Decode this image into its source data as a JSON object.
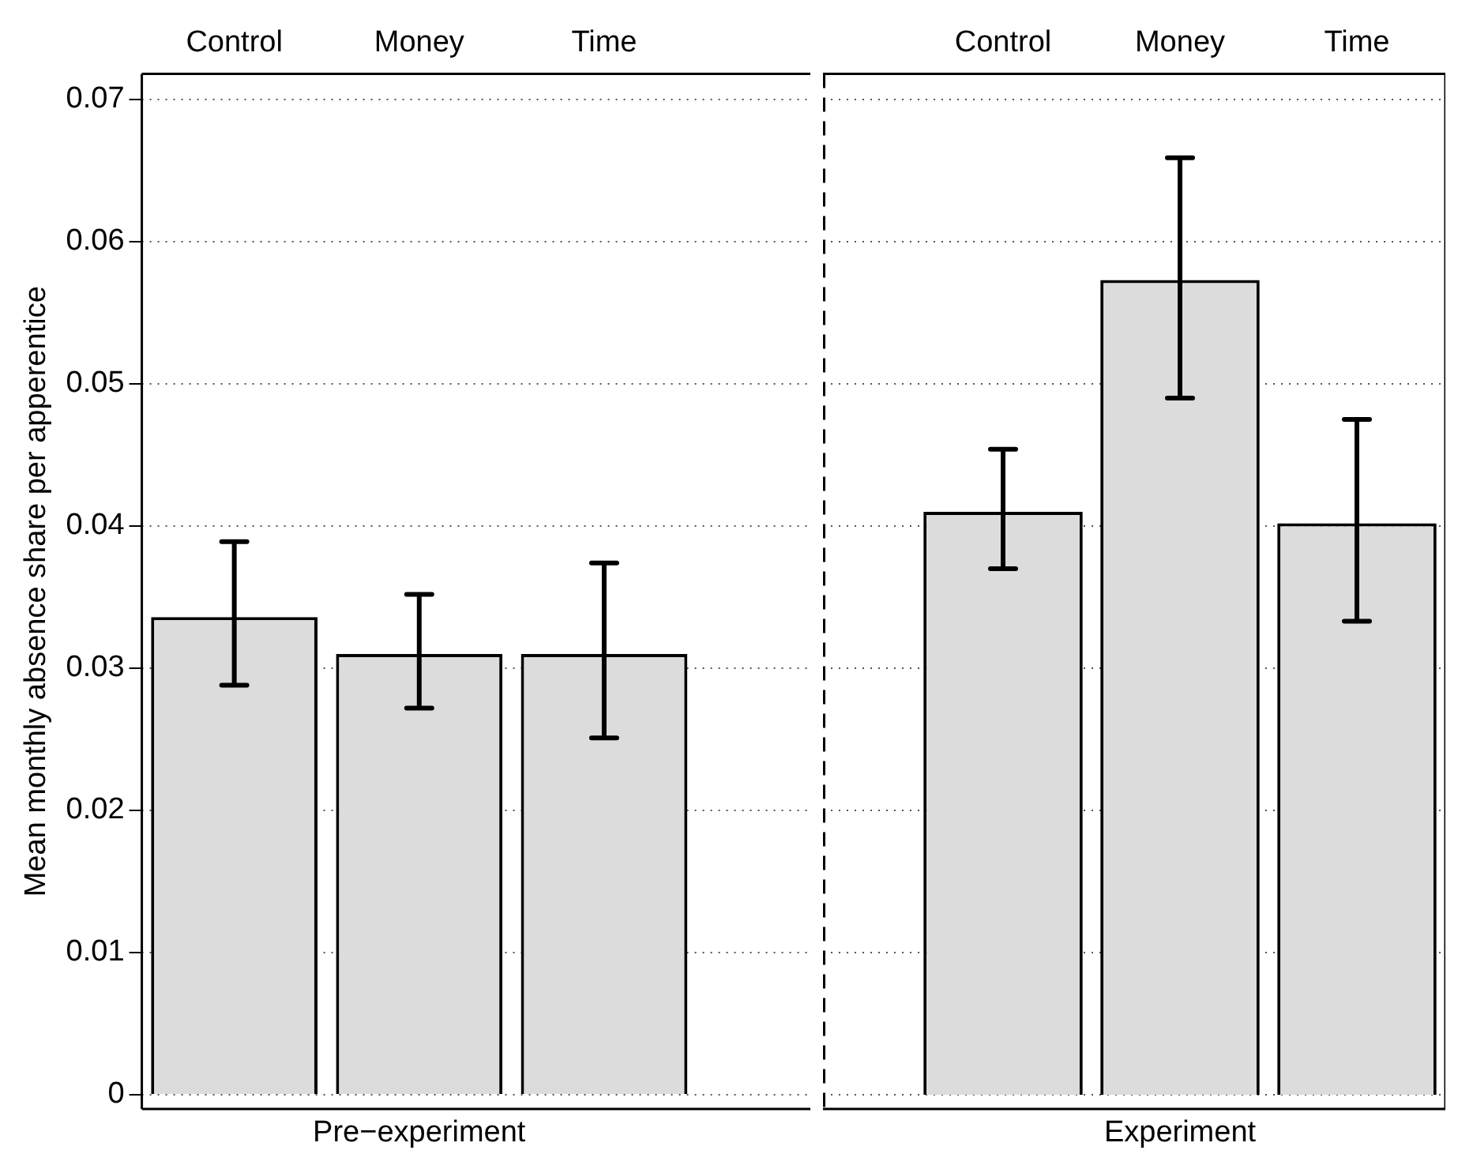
{
  "chart_data": [
    {
      "type": "bar",
      "ylabel": "Mean monthly absence share per apperentice",
      "categories": [
        "Control",
        "Money",
        "Time"
      ],
      "values": [
        0.0336,
        0.031,
        0.031
      ],
      "errors": [
        [
          0.0288,
          0.0389
        ],
        [
          0.0272,
          0.0352
        ],
        [
          0.0251,
          0.0374
        ]
      ],
      "color": "#dcdcdc",
      "ylim": [
        -0.001,
        0.0718
      ],
      "yticks": [
        0,
        0.01,
        0.02,
        0.03,
        0.04,
        0.05,
        0.06,
        0.07
      ],
      "grid": "y",
      "legend": false,
      "annotations": [
        "Pre−experiment"
      ]
    },
    {
      "type": "bar",
      "categories": [
        "Control",
        "Money",
        "Time"
      ],
      "values": [
        0.041,
        0.0573,
        0.0402
      ],
      "errors": [
        [
          0.037,
          0.0454
        ],
        [
          0.049,
          0.0659
        ],
        [
          0.0333,
          0.0475
        ]
      ],
      "color": "#dcdcdc",
      "ylim": [
        -0.001,
        0.0718
      ],
      "yticks": [
        0,
        0.01,
        0.02,
        0.03,
        0.04,
        0.05,
        0.06,
        0.07
      ],
      "grid": "y",
      "legend": false,
      "tick_labels": "x",
      "annotations": [
        "Experiment"
      ]
    }
  ]
}
